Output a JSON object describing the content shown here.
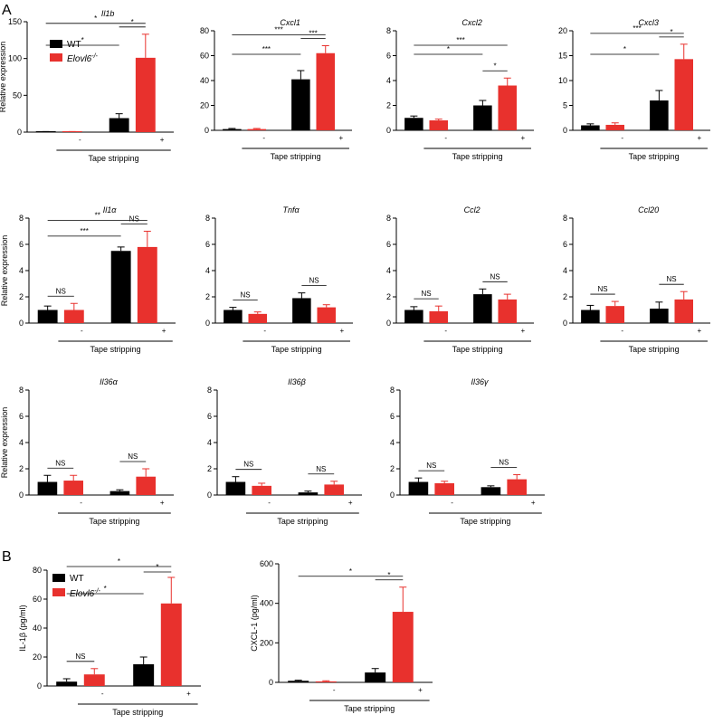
{
  "panel_labels": [
    "A",
    "B"
  ],
  "legend": {
    "entries": [
      {
        "name": "WT",
        "italic": false,
        "color": "#000000"
      },
      {
        "name": "Elovl6",
        "superscript": "-/-",
        "italic": true,
        "color": "#e8312d"
      }
    ]
  },
  "colors": {
    "wt": "#000000",
    "ko": "#e8312d",
    "axis": "#000000"
  },
  "chart_data": [
    {
      "type": "bar",
      "title": "Il1b",
      "title_italic": true,
      "ylabel": "Relative expression",
      "xlabel": "Tape stripping",
      "yticks": [
        0,
        50,
        100,
        150
      ],
      "ylim": [
        0,
        150
      ],
      "groups": [
        "-",
        "+"
      ],
      "series": [
        {
          "name": "WT",
          "values": [
            0.5,
            19
          ],
          "errors": [
            0.3,
            6
          ]
        },
        {
          "name": "Elovl6-/-",
          "values": [
            0.5,
            101
          ],
          "errors": [
            0.3,
            32
          ]
        }
      ],
      "sig": [
        {
          "from": "g0a",
          "to": "g1a",
          "label": "*"
        },
        {
          "from": "g0a",
          "to": "g1b",
          "label": "*"
        },
        {
          "from": "g1a",
          "to": "g1b",
          "label": "*"
        }
      ]
    },
    {
      "type": "bar",
      "title": "Cxcl1",
      "title_italic": true,
      "ylabel": "",
      "xlabel": "Tape stripping",
      "yticks": [
        0,
        20,
        40,
        60,
        80
      ],
      "ylim": [
        0,
        80
      ],
      "groups": [
        "-",
        "+"
      ],
      "series": [
        {
          "name": "WT",
          "values": [
            1,
            41
          ],
          "errors": [
            0.5,
            7
          ]
        },
        {
          "name": "Elovl6-/-",
          "values": [
            1,
            62
          ],
          "errors": [
            0.5,
            6
          ]
        }
      ],
      "sig": [
        {
          "from": "g0a",
          "to": "g1a",
          "label": "***"
        },
        {
          "from": "g0a",
          "to": "g1b",
          "label": "***"
        },
        {
          "from": "g1a",
          "to": "g1b",
          "label": "***"
        }
      ]
    },
    {
      "type": "bar",
      "title": "Cxcl2",
      "title_italic": true,
      "ylabel": "",
      "xlabel": "Tape stripping",
      "yticks": [
        0,
        2,
        4,
        6,
        8
      ],
      "ylim": [
        0,
        8
      ],
      "groups": [
        "-",
        "+"
      ],
      "series": [
        {
          "name": "WT",
          "values": [
            1.0,
            2.0
          ],
          "errors": [
            0.15,
            0.4
          ]
        },
        {
          "name": "Elovl6-/-",
          "values": [
            0.8,
            3.6
          ],
          "errors": [
            0.1,
            0.6
          ]
        }
      ],
      "sig": [
        {
          "from": "g0a",
          "to": "g1a",
          "label": "*"
        },
        {
          "from": "g0a",
          "to": "g1b",
          "label": "***"
        },
        {
          "from": "g1a",
          "to": "g1b",
          "label": "*"
        }
      ]
    },
    {
      "type": "bar",
      "title": "Cxcl3",
      "title_italic": true,
      "ylabel": "",
      "xlabel": "Tape stripping",
      "yticks": [
        0,
        5,
        10,
        15,
        20
      ],
      "ylim": [
        0,
        20
      ],
      "groups": [
        "-",
        "+"
      ],
      "series": [
        {
          "name": "WT",
          "values": [
            1.0,
            6.0
          ],
          "errors": [
            0.3,
            2.0
          ]
        },
        {
          "name": "Elovl6-/-",
          "values": [
            1.1,
            14.3
          ],
          "errors": [
            0.4,
            3.0
          ]
        }
      ],
      "sig": [
        {
          "from": "g0a",
          "to": "g1a",
          "label": "*"
        },
        {
          "from": "g0a",
          "to": "g1b",
          "label": "***"
        },
        {
          "from": "g1a",
          "to": "g1b",
          "label": "*"
        }
      ]
    },
    {
      "type": "bar",
      "title": "Il1α",
      "title_italic": true,
      "ylabel": "Relative expression",
      "xlabel": "Tape stripping",
      "yticks": [
        0,
        2,
        4,
        6,
        8
      ],
      "ylim": [
        0,
        8
      ],
      "groups": [
        "-",
        "+"
      ],
      "series": [
        {
          "name": "WT",
          "values": [
            1.0,
            5.5
          ],
          "errors": [
            0.3,
            0.3
          ]
        },
        {
          "name": "Elovl6-/-",
          "values": [
            1.0,
            5.8
          ],
          "errors": [
            0.5,
            1.2
          ]
        }
      ],
      "sig": [
        {
          "from": "g0a",
          "to": "g0b",
          "label": "NS"
        },
        {
          "from": "g0a",
          "to": "g1a",
          "label": "***"
        },
        {
          "from": "g0a",
          "to": "g1b",
          "label": "**"
        },
        {
          "from": "g1a",
          "to": "g1b",
          "label": "NS"
        }
      ]
    },
    {
      "type": "bar",
      "title": "Tnfα",
      "title_italic": true,
      "ylabel": "",
      "xlabel": "Tape stripping",
      "yticks": [
        0,
        2,
        4,
        6,
        8
      ],
      "ylim": [
        0,
        8
      ],
      "groups": [
        "-",
        "+"
      ],
      "series": [
        {
          "name": "WT",
          "values": [
            1.0,
            1.9
          ],
          "errors": [
            0.2,
            0.4
          ]
        },
        {
          "name": "Elovl6-/-",
          "values": [
            0.7,
            1.2
          ],
          "errors": [
            0.15,
            0.2
          ]
        }
      ],
      "sig": [
        {
          "from": "g0a",
          "to": "g0b",
          "label": "NS"
        },
        {
          "from": "g1a",
          "to": "g1b",
          "label": "NS"
        }
      ]
    },
    {
      "type": "bar",
      "title": "Ccl2",
      "title_italic": true,
      "ylabel": "",
      "xlabel": "Tape stripping",
      "yticks": [
        0,
        2,
        4,
        6,
        8
      ],
      "ylim": [
        0,
        8
      ],
      "groups": [
        "-",
        "+"
      ],
      "series": [
        {
          "name": "WT",
          "values": [
            1.0,
            2.2
          ],
          "errors": [
            0.25,
            0.4
          ]
        },
        {
          "name": "Elovl6-/-",
          "values": [
            0.9,
            1.8
          ],
          "errors": [
            0.4,
            0.4
          ]
        }
      ],
      "sig": [
        {
          "from": "g0a",
          "to": "g0b",
          "label": "NS"
        },
        {
          "from": "g1a",
          "to": "g1b",
          "label": "NS"
        }
      ]
    },
    {
      "type": "bar",
      "title": "Ccl20",
      "title_italic": true,
      "ylabel": "",
      "xlabel": "Tape stripping",
      "yticks": [
        0,
        2,
        4,
        6,
        8
      ],
      "ylim": [
        0,
        8
      ],
      "groups": [
        "-",
        "+"
      ],
      "series": [
        {
          "name": "WT",
          "values": [
            1.0,
            1.1
          ],
          "errors": [
            0.35,
            0.5
          ]
        },
        {
          "name": "Elovl6-/-",
          "values": [
            1.3,
            1.8
          ],
          "errors": [
            0.35,
            0.6
          ]
        }
      ],
      "sig": [
        {
          "from": "g0a",
          "to": "g0b",
          "label": "NS"
        },
        {
          "from": "g1a",
          "to": "g1b",
          "label": "NS"
        }
      ]
    },
    {
      "type": "bar",
      "title": "Il36α",
      "title_italic": true,
      "ylabel": "Relative expression",
      "xlabel": "Tape stripping",
      "yticks": [
        0,
        2,
        4,
        6,
        8
      ],
      "ylim": [
        0,
        8
      ],
      "groups": [
        "-",
        "+"
      ],
      "series": [
        {
          "name": "WT",
          "values": [
            1.0,
            0.3
          ],
          "errors": [
            0.5,
            0.1
          ]
        },
        {
          "name": "Elovl6-/-",
          "values": [
            1.1,
            1.4
          ],
          "errors": [
            0.4,
            0.6
          ]
        }
      ],
      "sig": [
        {
          "from": "g0a",
          "to": "g0b",
          "label": "NS"
        },
        {
          "from": "g1a",
          "to": "g1b",
          "label": "NS"
        }
      ]
    },
    {
      "type": "bar",
      "title": "Il36β",
      "title_italic": true,
      "ylabel": "",
      "xlabel": "Tape stripping",
      "yticks": [
        0,
        2,
        4,
        6,
        8
      ],
      "ylim": [
        0,
        8
      ],
      "groups": [
        "-",
        "+"
      ],
      "series": [
        {
          "name": "WT",
          "values": [
            1.0,
            0.2
          ],
          "errors": [
            0.4,
            0.1
          ]
        },
        {
          "name": "Elovl6-/-",
          "values": [
            0.7,
            0.8
          ],
          "errors": [
            0.2,
            0.25
          ]
        }
      ],
      "sig": [
        {
          "from": "g0a",
          "to": "g0b",
          "label": "NS"
        },
        {
          "from": "g1a",
          "to": "g1b",
          "label": "NS"
        }
      ]
    },
    {
      "type": "bar",
      "title": "Il36γ",
      "title_italic": true,
      "ylabel": "",
      "xlabel": "Tape stripping",
      "yticks": [
        0,
        2,
        4,
        6,
        8
      ],
      "ylim": [
        0,
        8
      ],
      "groups": [
        "-",
        "+"
      ],
      "series": [
        {
          "name": "WT",
          "values": [
            1.0,
            0.6
          ],
          "errors": [
            0.3,
            0.1
          ]
        },
        {
          "name": "Elovl6-/-",
          "values": [
            0.9,
            1.2
          ],
          "errors": [
            0.15,
            0.35
          ]
        }
      ],
      "sig": [
        {
          "from": "g0a",
          "to": "g0b",
          "label": "NS"
        },
        {
          "from": "g1a",
          "to": "g1b",
          "label": "NS"
        }
      ]
    },
    {
      "type": "bar",
      "title": "",
      "title_italic": false,
      "ylabel": "IL-1β (pg/ml)",
      "xlabel": "Tape stripping",
      "yticks": [
        0,
        20,
        40,
        60,
        80
      ],
      "ylim": [
        0,
        80
      ],
      "groups": [
        "-",
        "+"
      ],
      "series": [
        {
          "name": "WT",
          "values": [
            3,
            15
          ],
          "errors": [
            2,
            5
          ]
        },
        {
          "name": "Elovl6-/-",
          "values": [
            8,
            57
          ],
          "errors": [
            4,
            18
          ]
        }
      ],
      "sig": [
        {
          "from": "g0a",
          "to": "g0b",
          "label": "NS"
        },
        {
          "from": "g0a",
          "to": "g1a",
          "label": "*"
        },
        {
          "from": "g0a",
          "to": "g1b",
          "label": "*"
        },
        {
          "from": "g1a",
          "to": "g1b",
          "label": "*"
        }
      ]
    },
    {
      "type": "bar",
      "title": "",
      "title_italic": false,
      "ylabel": "CXCL-1 (pg/ml)",
      "xlabel": "Tape stripping",
      "yticks": [
        0,
        200,
        400,
        600
      ],
      "ylim": [
        0,
        600
      ],
      "groups": [
        "-",
        "+"
      ],
      "series": [
        {
          "name": "WT",
          "values": [
            8,
            50
          ],
          "errors": [
            3,
            20
          ]
        },
        {
          "name": "Elovl6-/-",
          "values": [
            5,
            357
          ],
          "errors": [
            3,
            125
          ]
        }
      ],
      "sig": [
        {
          "from": "g0a",
          "to": "g1b",
          "label": "*"
        },
        {
          "from": "g1a",
          "to": "g1b",
          "label": "*"
        }
      ]
    }
  ]
}
